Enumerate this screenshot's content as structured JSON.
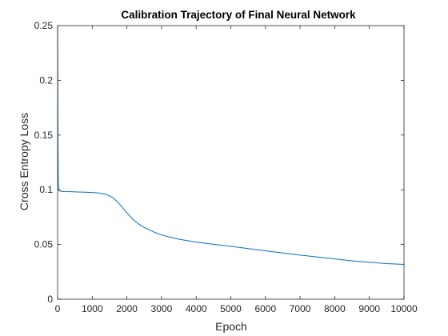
{
  "chart_data": {
    "type": "line",
    "title": "Calibration Trajectory of Final Neural Network",
    "xlabel": "Epoch",
    "ylabel": "Cross Entropy Loss",
    "xlim": [
      0,
      10000
    ],
    "ylim": [
      0,
      0.25
    ],
    "xticks": [
      0,
      1000,
      2000,
      3000,
      4000,
      5000,
      6000,
      7000,
      8000,
      9000,
      10000
    ],
    "yticks": [
      0,
      0.05,
      0.1,
      0.15,
      0.2,
      0.25
    ],
    "xtick_labels": [
      "0",
      "1000",
      "2000",
      "3000",
      "4000",
      "5000",
      "6000",
      "7000",
      "8000",
      "9000",
      "10000"
    ],
    "ytick_labels": [
      "0",
      "0.05",
      "0.1",
      "0.15",
      "0.2",
      "0.25"
    ],
    "grid": false,
    "colors": {
      "line": "#0072bd",
      "axes": "#262626",
      "background": "#ffffff"
    },
    "series": [
      {
        "x": [
          0,
          5,
          10,
          20,
          30,
          50,
          80,
          100,
          200,
          400,
          600,
          800,
          1000,
          1200,
          1400,
          1500,
          1600,
          1700,
          1800,
          1900,
          2000,
          2100,
          2200,
          2300,
          2400,
          2500,
          2600,
          2800,
          3000,
          3200,
          3500,
          4000,
          4500,
          5000,
          5500,
          6000,
          6500,
          7000,
          7500,
          8000,
          8500,
          9000,
          9500,
          10000
        ],
        "y": [
          0.25,
          0.2,
          0.15,
          0.11,
          0.1,
          0.099,
          0.0988,
          0.0985,
          0.0983,
          0.0982,
          0.098,
          0.0978,
          0.0975,
          0.097,
          0.0958,
          0.0945,
          0.0925,
          0.0898,
          0.0865,
          0.0828,
          0.079,
          0.0755,
          0.0723,
          0.0697,
          0.0675,
          0.0656,
          0.064,
          0.0612,
          0.0588,
          0.057,
          0.0548,
          0.0522,
          0.0502,
          0.0483,
          0.0462,
          0.0442,
          0.0422,
          0.0403,
          0.0386,
          0.0368,
          0.0351,
          0.0337,
          0.0325,
          0.0318
        ]
      }
    ]
  }
}
